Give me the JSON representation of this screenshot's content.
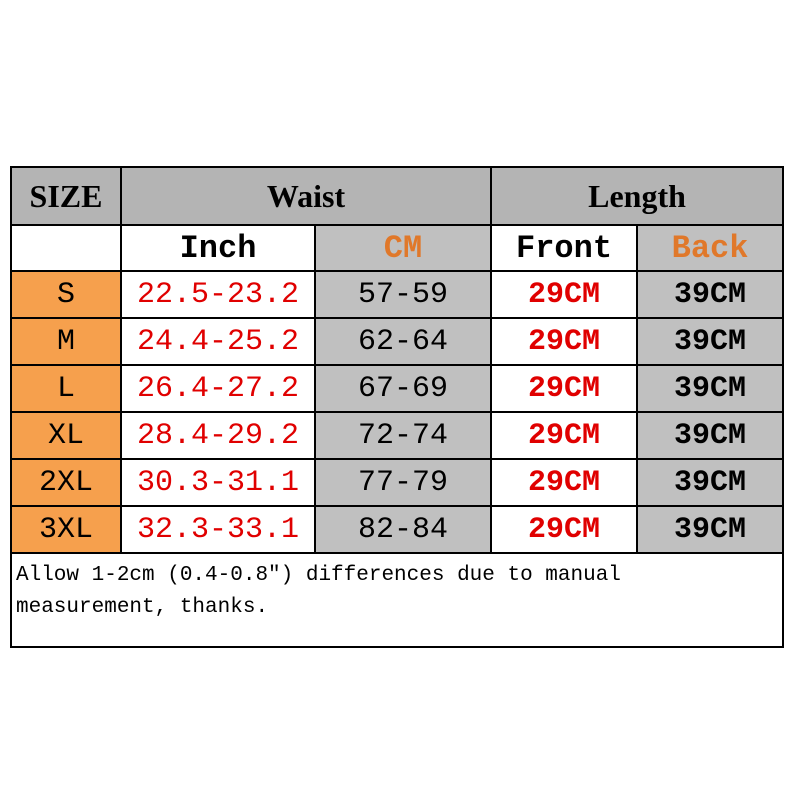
{
  "table": {
    "headers": [
      "SIZE",
      "Waist",
      "Length"
    ],
    "subheaders": [
      "Inch",
      "CM",
      "Front",
      "Back"
    ],
    "rows": [
      [
        "S",
        "22.5-23.2",
        "57-59",
        "29CM",
        "39CM"
      ],
      [
        "M",
        "24.4-25.2",
        "62-64",
        "29CM",
        "39CM"
      ],
      [
        "L",
        "26.4-27.2",
        "67-69",
        "29CM",
        "39CM"
      ],
      [
        "XL",
        "28.4-29.2",
        "72-74",
        "29CM",
        "39CM"
      ],
      [
        "2XL",
        "30.3-31.1",
        "77-79",
        "29CM",
        "39CM"
      ],
      [
        "3XL",
        "32.3-33.1",
        "82-84",
        "29CM",
        "39CM"
      ]
    ],
    "note": "Allow 1-2cm (0.4-0.8\") differences due to manual measurement, thanks."
  }
}
